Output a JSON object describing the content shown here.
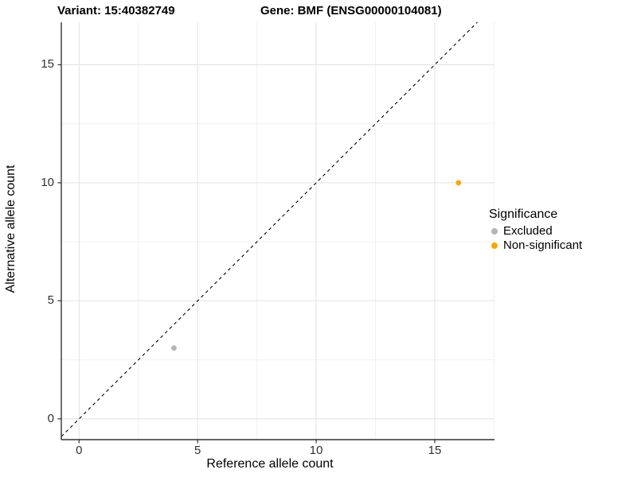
{
  "titles": {
    "variant": "Variant: 15:40382749",
    "gene": "Gene: BMF (ENSG00000104081)"
  },
  "chart_data": {
    "type": "scatter",
    "xlabel": "Reference allele count",
    "ylabel": "Alternative allele count",
    "xlim": [
      -0.75,
      17.52
    ],
    "ylim": [
      -0.88,
      16.8
    ],
    "xticks": [
      0,
      5,
      10,
      15
    ],
    "yticks": [
      0,
      5,
      10,
      15
    ],
    "xminor": [
      2.5,
      7.5,
      12.5,
      17.5
    ],
    "yminor": [
      2.5,
      7.5,
      12.5
    ],
    "grid": true,
    "reference_line": {
      "equation": "y = x",
      "style": "dashed",
      "color": "#000000"
    },
    "series": [
      {
        "name": "Excluded",
        "color": "#b4b4b4",
        "points": [
          [
            4,
            3
          ]
        ]
      },
      {
        "name": "Non-significant",
        "color": "#ffa500",
        "points": [
          [
            16,
            10
          ]
        ]
      }
    ],
    "legend": {
      "title": "Significance",
      "position": "right"
    }
  },
  "colors": {
    "axis_line": "#333333",
    "tick_mark": "#333333",
    "tick_label": "#303030",
    "grid_major": "#e2e2e2",
    "grid_minor": "#f0f0f0",
    "background": "#ffffff"
  }
}
